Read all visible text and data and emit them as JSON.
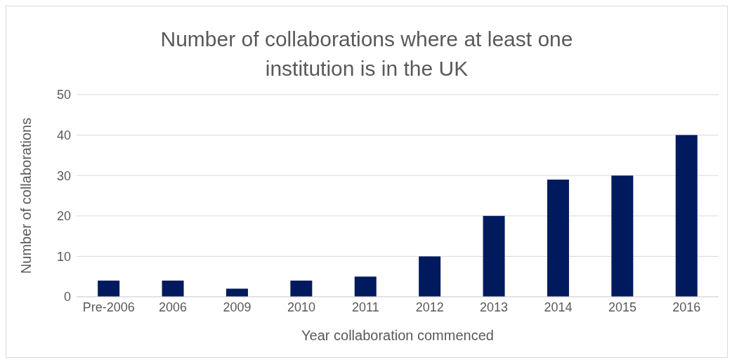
{
  "chart_data": {
    "type": "bar",
    "title": "Number of collaborations where at least one institution is in the UK",
    "xlabel": "Year collaboration commenced",
    "ylabel": "Number of collaborations",
    "categories": [
      "Pre-2006",
      "2006",
      "2009",
      "2010",
      "2011",
      "2012",
      "2013",
      "2014",
      "2015",
      "2016"
    ],
    "values": [
      4,
      4,
      2,
      4,
      5,
      10,
      20,
      29,
      30,
      40
    ],
    "color": "#001a5e",
    "ylim": [
      0,
      50
    ],
    "yticks": [
      0,
      10,
      20,
      30,
      40,
      50
    ],
    "grid": "y",
    "legend": false
  }
}
